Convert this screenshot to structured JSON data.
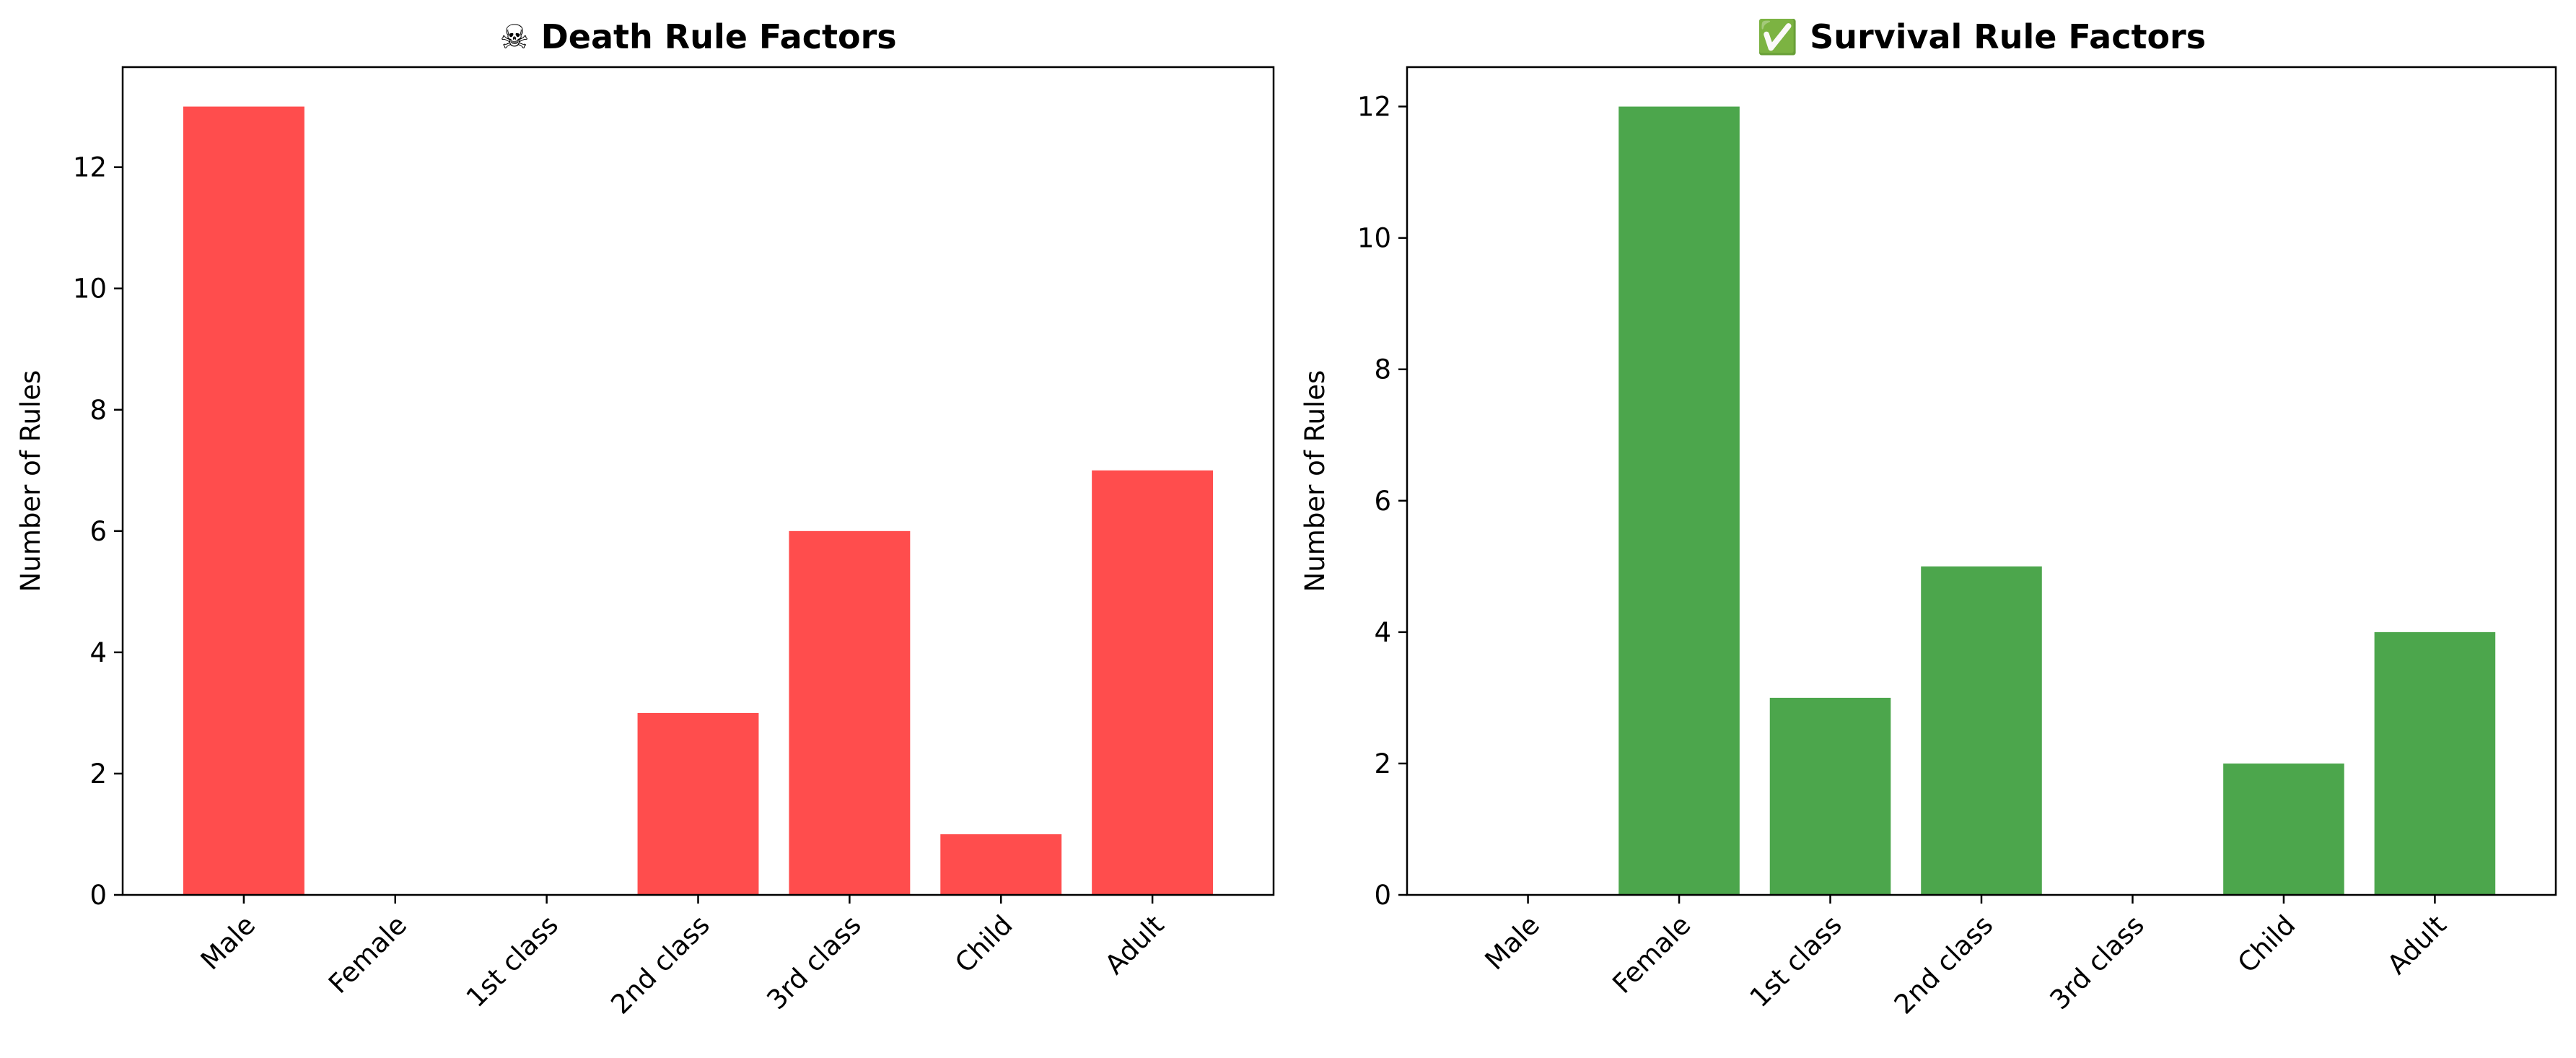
{
  "chart_data": [
    {
      "type": "bar",
      "title": "☠ Death Rule Factors",
      "ylabel": "Number of Rules",
      "xlabel": "",
      "categories": [
        "Male",
        "Female",
        "1st class",
        "2nd class",
        "3rd class",
        "Child",
        "Adult"
      ],
      "values": [
        13,
        0,
        0,
        3,
        6,
        1,
        7
      ],
      "yticks": [
        0,
        2,
        4,
        6,
        8,
        10,
        12
      ],
      "ylim": [
        0,
        13.65
      ],
      "color": "#ff4d4d",
      "grid": false
    },
    {
      "type": "bar",
      "title": "✅ Survival Rule Factors",
      "ylabel": "Number of Rules",
      "xlabel": "",
      "categories": [
        "Male",
        "Female",
        "1st class",
        "2nd class",
        "3rd class",
        "Child",
        "Adult"
      ],
      "values": [
        0,
        12,
        3,
        5,
        0,
        2,
        4
      ],
      "yticks": [
        0,
        2,
        4,
        6,
        8,
        10,
        12
      ],
      "ylim": [
        0,
        12.6
      ],
      "color": "#4ca64c",
      "grid": false
    }
  ]
}
